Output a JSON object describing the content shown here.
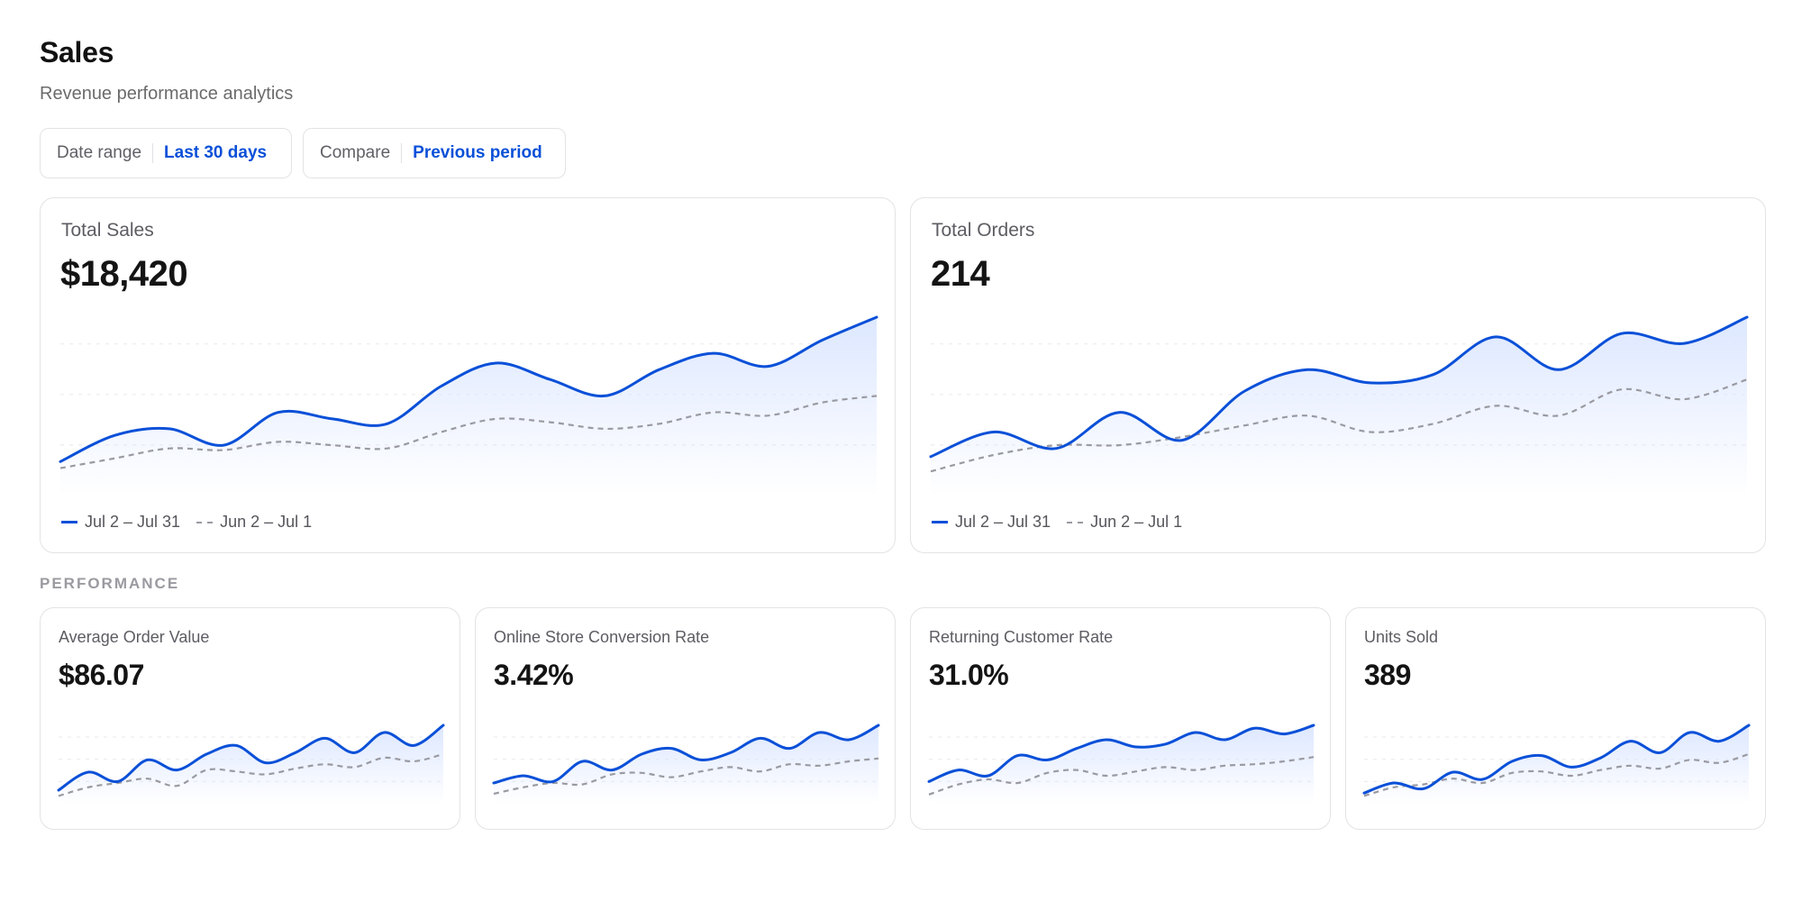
{
  "header": {
    "title": "Sales",
    "subtitle": "Revenue performance analytics"
  },
  "filters": {
    "date_range": {
      "label": "Date range",
      "value": "Last 30 days"
    },
    "compare": {
      "label": "Compare",
      "value": "Previous period"
    }
  },
  "colors": {
    "accent": "#0a50d8",
    "previous_series": "#9a9aa2",
    "area_fill": "#dbe6ff"
  },
  "legend": {
    "current": "Jul 2 – Jul 31",
    "previous": "Jun 2 – Jul 1"
  },
  "section_label": "PERFORMANCE",
  "cards": {
    "total_sales": {
      "label": "Total Sales",
      "value": "$18,420"
    },
    "total_orders": {
      "label": "Total Orders",
      "value": "214"
    },
    "aov": {
      "label": "Average Order Value",
      "value": "$86.07"
    },
    "conversion": {
      "label": "Online Store Conversion Rate",
      "value": "3.42%"
    },
    "returning": {
      "label": "Returning Customer Rate",
      "value": "31.0%"
    },
    "units": {
      "label": "Units Sold",
      "value": "389"
    }
  },
  "chart_data": [
    {
      "type": "area",
      "chart": "total_sales",
      "series": [
        {
          "name": "Jul 2 – Jul 31",
          "values": [
            0.12,
            0.28,
            0.32,
            0.22,
            0.42,
            0.38,
            0.35,
            0.58,
            0.72,
            0.62,
            0.52,
            0.68,
            0.78,
            0.7,
            0.86,
            1.0
          ]
        },
        {
          "name": "Jun 2 – Jul 1",
          "values": [
            0.08,
            0.14,
            0.2,
            0.19,
            0.24,
            0.22,
            0.2,
            0.3,
            0.38,
            0.36,
            0.32,
            0.35,
            0.42,
            0.4,
            0.48,
            0.52
          ]
        }
      ]
    },
    {
      "type": "area",
      "chart": "total_orders",
      "series": [
        {
          "name": "Jul 2 – Jul 31",
          "values": [
            0.15,
            0.3,
            0.2,
            0.42,
            0.25,
            0.55,
            0.68,
            0.6,
            0.65,
            0.88,
            0.68,
            0.9,
            0.84,
            1.0
          ]
        },
        {
          "name": "Jun 2 – Jul 1",
          "values": [
            0.06,
            0.16,
            0.22,
            0.22,
            0.27,
            0.34,
            0.4,
            0.3,
            0.35,
            0.46,
            0.4,
            0.56,
            0.5,
            0.62
          ]
        }
      ]
    },
    {
      "type": "area",
      "chart": "aov",
      "series": [
        {
          "name": "Jul 2 – Jul 31",
          "values": [
            0.1,
            0.35,
            0.22,
            0.52,
            0.38,
            0.6,
            0.72,
            0.48,
            0.62,
            0.82,
            0.62,
            0.9,
            0.72,
            1.0
          ]
        },
        {
          "name": "Jun 2 – Jul 1",
          "values": [
            0.02,
            0.14,
            0.2,
            0.26,
            0.16,
            0.38,
            0.36,
            0.32,
            0.4,
            0.46,
            0.42,
            0.55,
            0.5,
            0.6
          ]
        }
      ]
    },
    {
      "type": "area",
      "chart": "conversion",
      "series": [
        {
          "name": "Jul 2 – Jul 31",
          "values": [
            0.2,
            0.3,
            0.22,
            0.5,
            0.38,
            0.6,
            0.68,
            0.52,
            0.62,
            0.82,
            0.68,
            0.9,
            0.8,
            1.0
          ]
        },
        {
          "name": "Jun 2 – Jul 1",
          "values": [
            0.05,
            0.14,
            0.2,
            0.18,
            0.32,
            0.34,
            0.28,
            0.36,
            0.42,
            0.36,
            0.46,
            0.44,
            0.5,
            0.54
          ]
        }
      ]
    },
    {
      "type": "area",
      "chart": "returning",
      "series": [
        {
          "name": "Jul 2 – Jul 31",
          "values": [
            0.22,
            0.38,
            0.3,
            0.58,
            0.52,
            0.68,
            0.8,
            0.7,
            0.74,
            0.9,
            0.8,
            0.96,
            0.88,
            1.0
          ]
        },
        {
          "name": "Jun 2 – Jul 1",
          "values": [
            0.04,
            0.18,
            0.25,
            0.2,
            0.34,
            0.38,
            0.3,
            0.36,
            0.42,
            0.38,
            0.44,
            0.46,
            0.5,
            0.56
          ]
        }
      ]
    },
    {
      "type": "area",
      "chart": "units",
      "series": [
        {
          "name": "Jul 2 – Jul 31",
          "values": [
            0.06,
            0.2,
            0.12,
            0.35,
            0.25,
            0.5,
            0.58,
            0.42,
            0.55,
            0.78,
            0.62,
            0.9,
            0.78,
            1.0
          ]
        },
        {
          "name": "Jun 2 – Jul 1",
          "values": [
            0.02,
            0.14,
            0.18,
            0.26,
            0.2,
            0.34,
            0.36,
            0.3,
            0.38,
            0.44,
            0.4,
            0.52,
            0.48,
            0.6
          ]
        }
      ]
    }
  ]
}
